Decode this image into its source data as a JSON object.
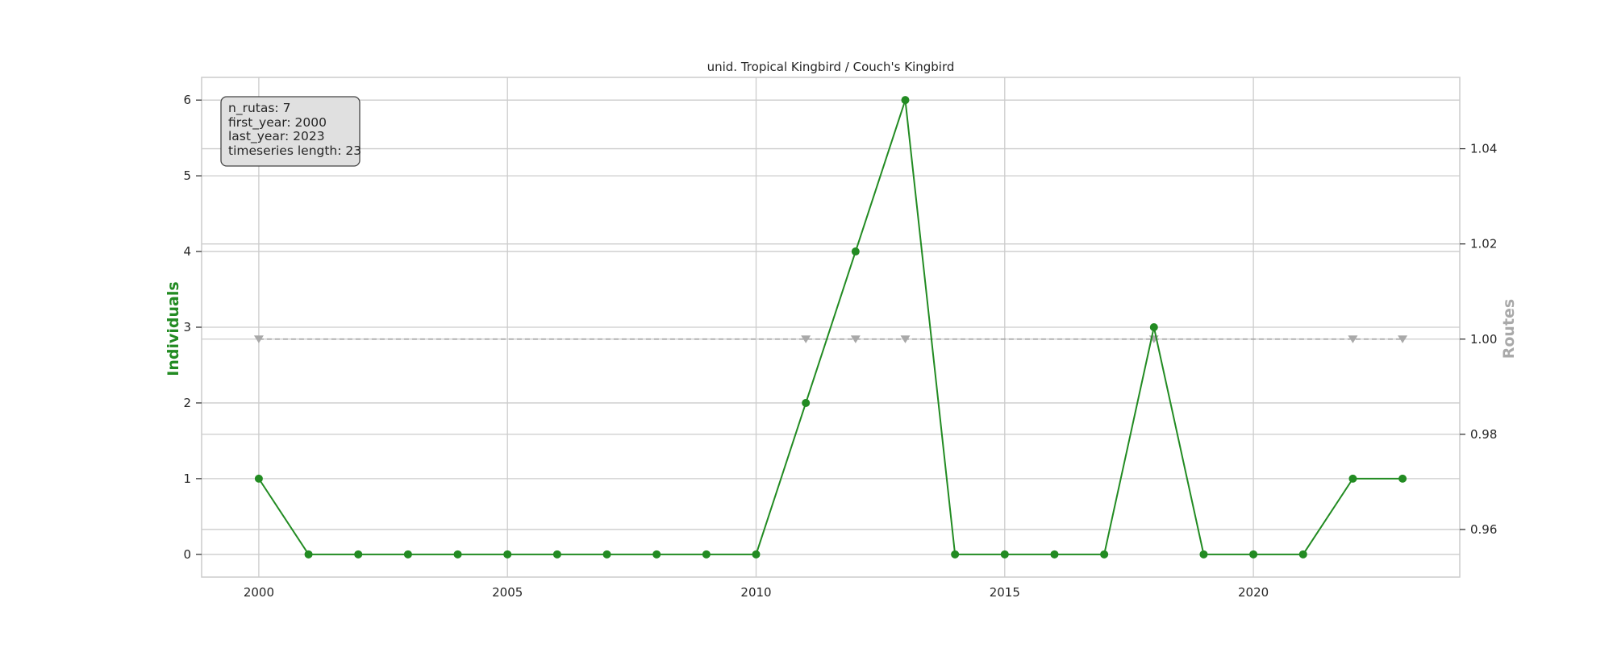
{
  "chart_data": {
    "type": "line",
    "title": "unid. Tropical Kingbird / Couch's Kingbird",
    "xlabel": "",
    "ylabel": "Individuals",
    "ylabel_right": "Routes",
    "xlim": [
      1998.85,
      2024.15
    ],
    "ylim": [
      -0.3,
      6.3
    ],
    "ylim_right": [
      0.95,
      1.055
    ],
    "x_ticks": [
      2000,
      2005,
      2010,
      2015,
      2020
    ],
    "y_ticks": [
      0,
      1,
      2,
      3,
      4,
      5,
      6
    ],
    "y_ticks_right": [
      0.96,
      0.98,
      1.0,
      1.02,
      1.04
    ],
    "y_tick_labels_right": [
      "0.96",
      "0.98",
      "1.00",
      "1.02",
      "1.04"
    ],
    "grid": true,
    "series": [
      {
        "axis": "left",
        "color": "#228b22",
        "marker": "circle",
        "x": [
          2000,
          2001,
          2002,
          2003,
          2004,
          2005,
          2006,
          2007,
          2008,
          2009,
          2010,
          2011,
          2012,
          2013,
          2014,
          2015,
          2016,
          2017,
          2018,
          2019,
          2020,
          2021,
          2022,
          2023
        ],
        "values": [
          1,
          0,
          0,
          0,
          0,
          0,
          0,
          0,
          0,
          0,
          0,
          2,
          4,
          6,
          0,
          0,
          0,
          0,
          3,
          0,
          0,
          0,
          1,
          1
        ]
      },
      {
        "axis": "right",
        "color": "#a9a9a9",
        "marker": "triangle-down",
        "dashed": true,
        "x": [
          2000,
          2011,
          2012,
          2013,
          2018,
          2022,
          2023
        ],
        "values": [
          1,
          1,
          1,
          1,
          1,
          1,
          1
        ]
      }
    ]
  },
  "info_box": {
    "lines": [
      "n_rutas: 7",
      "first_year: 2000",
      "last_year: 2023",
      "timeseries length: 23"
    ]
  },
  "colors": {
    "individuals": "#228b22",
    "routes": "#a9a9a9",
    "grid": "#cccccc",
    "spine": "#cccccc",
    "box_fill": "#e0e0e0",
    "box_edge": "#444444"
  }
}
